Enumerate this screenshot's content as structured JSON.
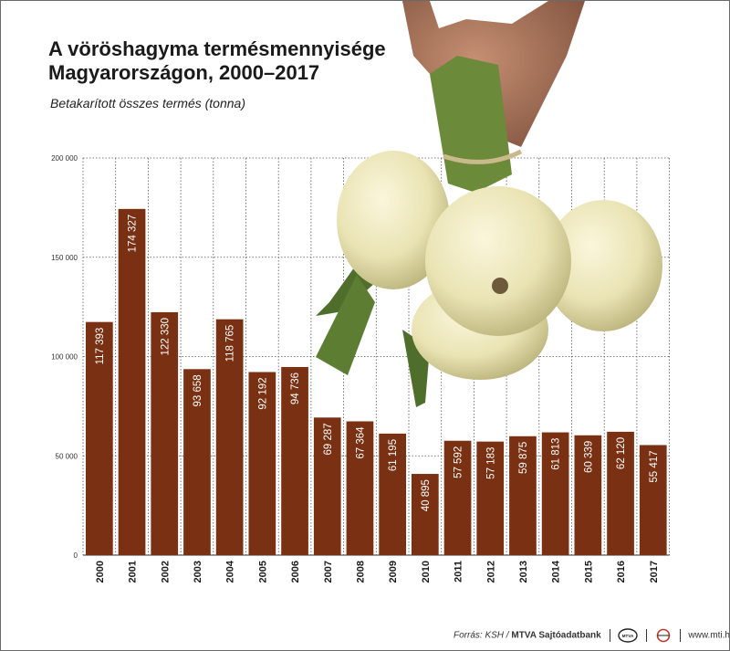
{
  "chart_data": {
    "type": "bar",
    "title": "A vöröshagyma termésmennyisége Magyarországon, 2000–2017",
    "title_lines": [
      "A vöröshagyma termésmennyisége",
      "Magyarországon, 2000–2017"
    ],
    "subtitle": "Betakarított összes termés (tonna)",
    "categories": [
      "2000",
      "2001",
      "2002",
      "2003",
      "2004",
      "2005",
      "2006",
      "2007",
      "2008",
      "2009",
      "2010",
      "2011",
      "2012",
      "2013",
      "2014",
      "2015",
      "2016",
      "2017"
    ],
    "values": [
      117393,
      174327,
      122330,
      93658,
      118765,
      92192,
      94736,
      69287,
      67364,
      61195,
      40895,
      57592,
      57183,
      59875,
      61813,
      60339,
      62120,
      55417
    ],
    "value_labels": [
      "117 393",
      "174 327",
      "122 330",
      "93 658",
      "118 765",
      "92 192",
      "94 736",
      "69 287",
      "67 364",
      "61 195",
      "40 895",
      "57 592",
      "57 183",
      "59 875",
      "61 813",
      "60 339",
      "62 120",
      "55 417"
    ],
    "ylim": [
      0,
      200000
    ],
    "yticks": [
      0,
      50000,
      100000,
      150000,
      200000
    ],
    "ytick_labels": [
      "0",
      "50 000",
      "100 000",
      "150 000",
      "200 000"
    ],
    "xlabel": "",
    "ylabel": "",
    "grid": true,
    "bar_color": "#7a3012",
    "label_color": "#ffffff"
  },
  "footer": {
    "source_prefix": "Forrás: KSH / ",
    "source_org": "MTVA Sajtóadatbank",
    "logo_text": "MTVA",
    "website": "www.mti.hu"
  }
}
